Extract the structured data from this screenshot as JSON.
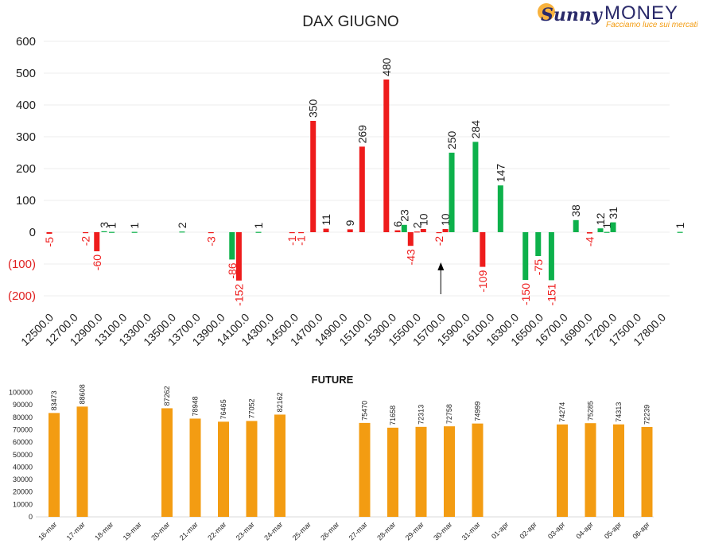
{
  "brand": {
    "name_part1": "Sunny",
    "name_part2": "MONEY",
    "tagline": "Facciamo luce sui mercati"
  },
  "chart_data": [
    {
      "type": "bar",
      "title": "DAX GIUGNO",
      "ylim": [
        -200,
        600
      ],
      "yticks": [
        "(200)",
        "(100)",
        "0",
        "100",
        "200",
        "300",
        "400",
        "500",
        "600"
      ],
      "ytick_values": [
        -200,
        -100,
        0,
        100,
        200,
        300,
        400,
        500,
        600
      ],
      "categories": [
        "12500.0",
        "12700.0",
        "12900.0",
        "13100.0",
        "13300.0",
        "13500.0",
        "13700.0",
        "13900.0",
        "14100.0",
        "14300.0",
        "14500.0",
        "14700.0",
        "14900.0",
        "15100.0",
        "15300.0",
        "15500.0",
        "15700.0",
        "15900.0",
        "16100.0",
        "16300.0",
        "16500.0",
        "16700.0",
        "16900.0",
        "17200.0",
        "17500.0",
        "17800.0"
      ],
      "colors": {
        "red": "#ee1c1c",
        "green": "#0db14b",
        "neg_label": "#ee1c1c",
        "pos_label": "#222222"
      },
      "bars": [
        {
          "x": 0.0,
          "value": -5,
          "color": "red",
          "label": "-5"
        },
        {
          "x": 1.48,
          "value": -2,
          "color": "red",
          "label": "-2"
        },
        {
          "x": 1.94,
          "value": -60,
          "color": "red",
          "label": "-60"
        },
        {
          "x": 2.24,
          "value": 3,
          "color": "green",
          "label": "3"
        },
        {
          "x": 2.55,
          "value": 1,
          "color": "green",
          "label": "1"
        },
        {
          "x": 3.48,
          "value": 1,
          "color": "green",
          "label": "1"
        },
        {
          "x": 5.42,
          "value": 2,
          "color": "green",
          "label": "2"
        },
        {
          "x": 6.6,
          "value": -3,
          "color": "red",
          "label": "-3"
        },
        {
          "x": 7.46,
          "value": -86,
          "color": "green",
          "label": "-86"
        },
        {
          "x": 7.74,
          "value": -152,
          "color": "red",
          "label": "-152"
        },
        {
          "x": 8.54,
          "value": 1,
          "color": "green",
          "label": "1"
        },
        {
          "x": 9.91,
          "value": -1,
          "color": "red",
          "label": "-1"
        },
        {
          "x": 10.28,
          "value": -1,
          "color": "red",
          "label": "-1"
        },
        {
          "x": 10.77,
          "value": 350,
          "color": "red",
          "label": "350"
        },
        {
          "x": 11.3,
          "value": 11,
          "color": "red",
          "label": "11"
        },
        {
          "x": 12.28,
          "value": 9,
          "color": "red",
          "label": "9"
        },
        {
          "x": 12.77,
          "value": 269,
          "color": "red",
          "label": "269"
        },
        {
          "x": 13.76,
          "value": 480,
          "color": "red",
          "label": "480"
        },
        {
          "x": 14.22,
          "value": 6,
          "color": "red",
          "label": "6"
        },
        {
          "x": 14.49,
          "value": 23,
          "color": "green",
          "label": "23"
        },
        {
          "x": 14.75,
          "value": -43,
          "color": "red",
          "label": "-43"
        },
        {
          "x": 15.01,
          "value": 2,
          "color": "red",
          "label": "2"
        },
        {
          "x": 15.27,
          "value": 10,
          "color": "red",
          "label": "10"
        },
        {
          "x": 15.91,
          "value": -2,
          "color": "red",
          "label": "-2"
        },
        {
          "x": 16.17,
          "value": 10,
          "color": "red",
          "label": "10"
        },
        {
          "x": 16.43,
          "value": 250,
          "color": "green",
          "label": "250"
        },
        {
          "x": 17.4,
          "value": 284,
          "color": "green",
          "label": "284"
        },
        {
          "x": 17.69,
          "value": -109,
          "color": "red",
          "label": "-109"
        },
        {
          "x": 18.42,
          "value": 147,
          "color": "green",
          "label": "147"
        },
        {
          "x": 19.44,
          "value": -150,
          "color": "green",
          "label": "-150"
        },
        {
          "x": 19.96,
          "value": -75,
          "color": "green",
          "label": "-75"
        },
        {
          "x": 20.5,
          "value": -151,
          "color": "green",
          "label": "-151"
        },
        {
          "x": 21.5,
          "value": 38,
          "color": "green",
          "label": "38"
        },
        {
          "x": 22.06,
          "value": -4,
          "color": "red",
          "label": "-4"
        },
        {
          "x": 22.5,
          "value": 12,
          "color": "green",
          "label": "12"
        },
        {
          "x": 22.76,
          "value": 1,
          "color": "green",
          "label": "1"
        },
        {
          "x": 23.02,
          "value": 31,
          "color": "green",
          "label": "31"
        },
        {
          "x": 25.75,
          "value": 1,
          "color": "green",
          "label": "1"
        }
      ],
      "annotations": [
        {
          "type": "arrow",
          "x": 16.0,
          "points": "up"
        }
      ]
    },
    {
      "type": "bar",
      "title": "FUTURE",
      "ylim": [
        0,
        100000
      ],
      "yticks": [
        "0",
        "10000",
        "20000",
        "30000",
        "40000",
        "50000",
        "60000",
        "70000",
        "80000",
        "90000",
        "100000"
      ],
      "ytick_values": [
        0,
        10000,
        20000,
        30000,
        40000,
        50000,
        60000,
        70000,
        80000,
        90000,
        100000
      ],
      "bar_color": "#f39c12",
      "categories": [
        "16-mar",
        "17-mar",
        "18-mar",
        "19-mar",
        "20-mar",
        "21-mar",
        "22-mar",
        "23-mar",
        "24-mar",
        "25-mar",
        "26-mar",
        "27-mar",
        "28-mar",
        "29-mar",
        "30-mar",
        "31-mar",
        "01-apr",
        "02-apr",
        "03-apr",
        "04-apr",
        "05-apr",
        "06-apr"
      ],
      "values": [
        83473,
        88608,
        null,
        null,
        87262,
        78948,
        76465,
        77052,
        82162,
        null,
        null,
        75470,
        71658,
        72313,
        72758,
        74999,
        null,
        null,
        74274,
        75285,
        74313,
        72239
      ],
      "labels": [
        "83473",
        "88608",
        "",
        "",
        "87262",
        "78948",
        "76465",
        "77052",
        "82162",
        "",
        "",
        "75470",
        "71658",
        "72313",
        "72758",
        "74999",
        "",
        "",
        "74274",
        "75285",
        "74313",
        "72239"
      ]
    }
  ]
}
